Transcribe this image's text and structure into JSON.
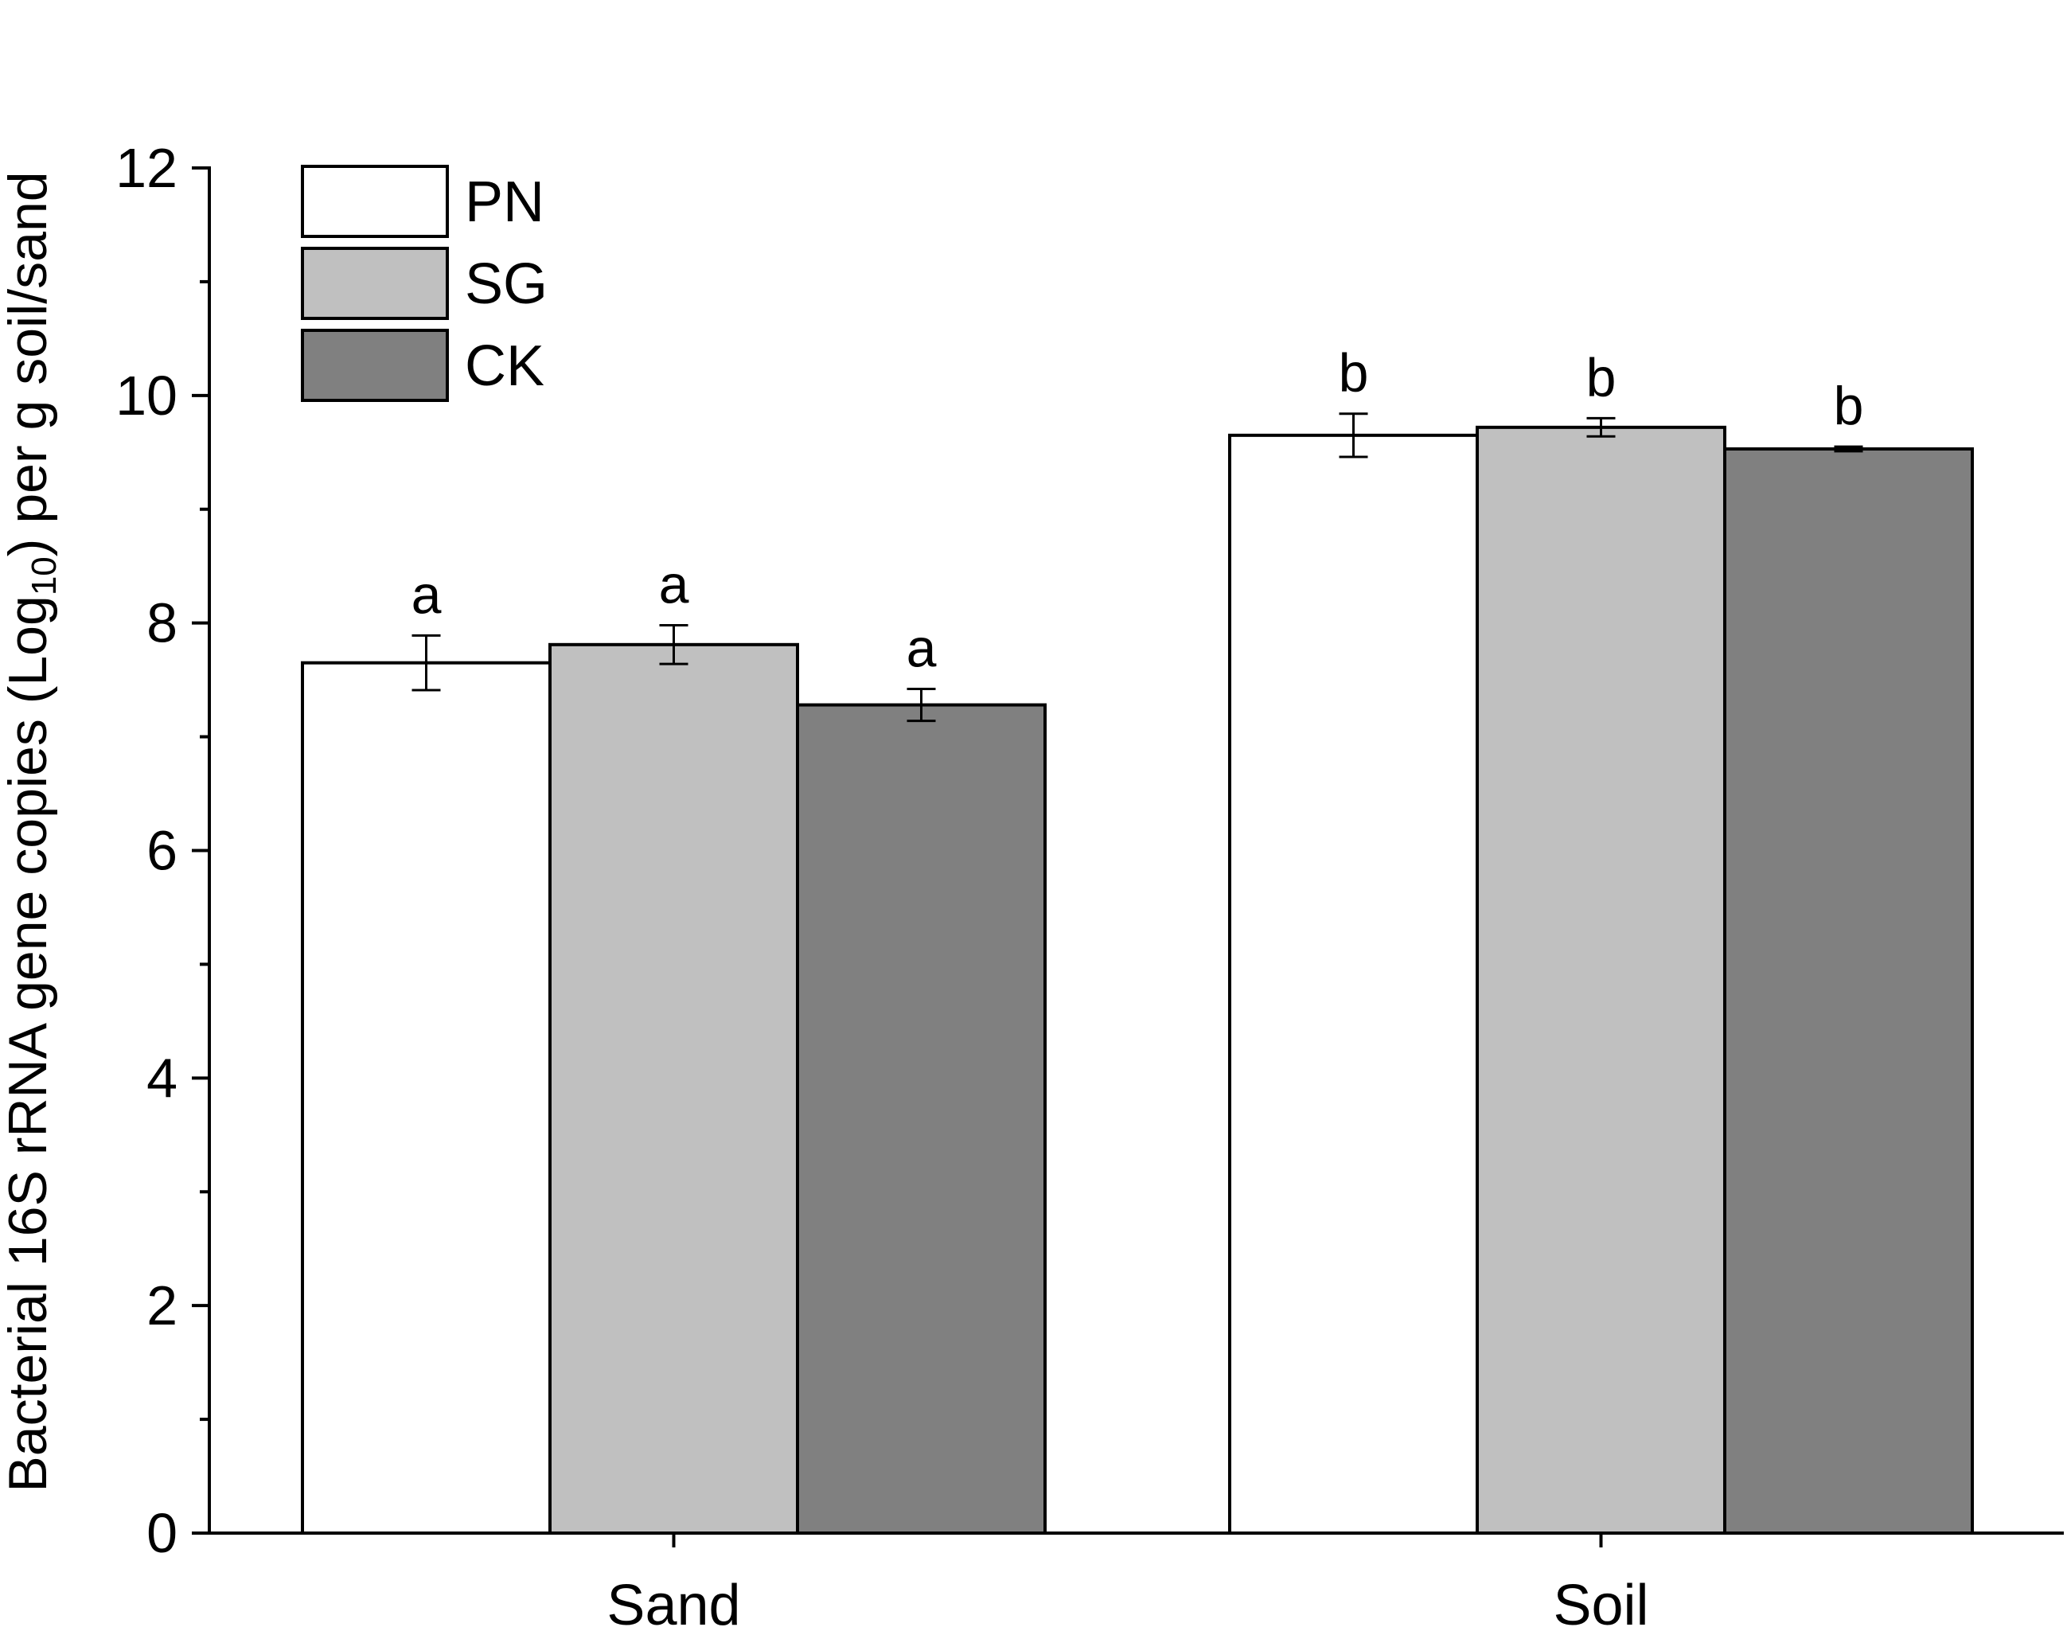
{
  "chart_data": {
    "type": "bar",
    "ylabel_parts": {
      "before_sub": "Bacterial 16S rRNA gene copies (Log",
      "subscript": "10",
      "after_sub": ") per g soil/sand"
    },
    "xlabel": "",
    "categories": [
      "Sand",
      "Soil"
    ],
    "ylim": [
      0,
      12
    ],
    "yticks": [
      0,
      2,
      4,
      6,
      8,
      10,
      12
    ],
    "ytick_labels": [
      "0",
      "2",
      "4",
      "6",
      "8",
      "10",
      "12"
    ],
    "minor_yticks": [
      1,
      3,
      5,
      7,
      9,
      11
    ],
    "grid": false,
    "legend_position": "top-left",
    "series": [
      {
        "name": "PN",
        "color": "#ffffff",
        "values": [
          7.65,
          9.65
        ],
        "errors": [
          0.24,
          0.19
        ],
        "letters": [
          "a",
          "b"
        ]
      },
      {
        "name": "SG",
        "color": "#c0c0c0",
        "values": [
          7.81,
          9.72
        ],
        "errors": [
          0.17,
          0.08
        ],
        "letters": [
          "a",
          "b"
        ]
      },
      {
        "name": "CK",
        "color": "#808080",
        "values": [
          7.28,
          9.53
        ],
        "errors": [
          0.14,
          0.02
        ],
        "letters": [
          "a",
          "b"
        ]
      }
    ]
  }
}
